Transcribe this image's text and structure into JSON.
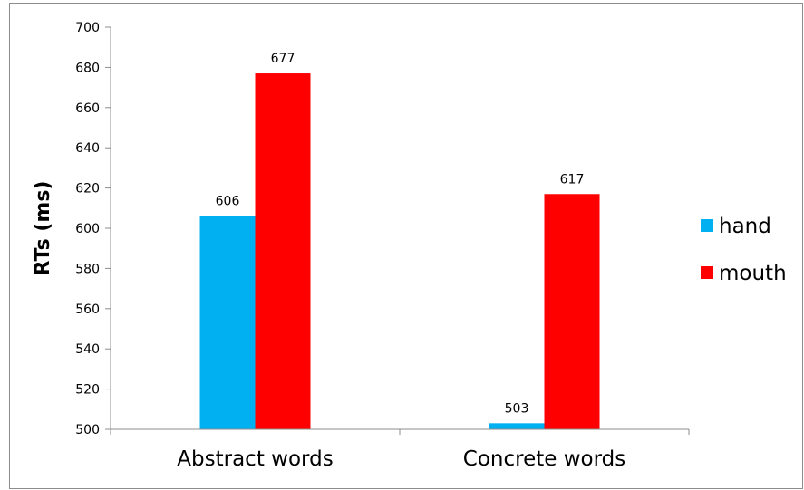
{
  "chart_data": {
    "type": "bar",
    "categories": [
      "Abstract words",
      "Concrete words"
    ],
    "series": [
      {
        "name": "hand",
        "values": [
          606,
          503
        ],
        "color": "#00B0F0"
      },
      {
        "name": "mouth",
        "values": [
          677,
          617
        ],
        "color": "#FF0000"
      }
    ],
    "data_labels": [
      [
        "606",
        "503"
      ],
      [
        "677",
        "617"
      ]
    ],
    "ylabel": "RTs (ms)",
    "xlabel": "",
    "title": "",
    "ylim": [
      500,
      700
    ],
    "yticks": [
      500,
      520,
      540,
      560,
      580,
      600,
      620,
      640,
      660,
      680,
      700
    ],
    "grid": false,
    "legend": "right",
    "axis_color": "#8C8C8C"
  }
}
